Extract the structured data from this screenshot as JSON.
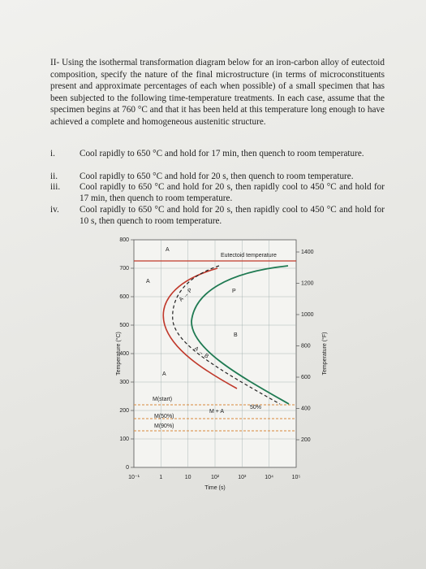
{
  "question": {
    "intro": "II- Using the isothermal transformation diagram below for an iron-carbon alloy of eutectoid composition, specify the nature of the final microstructure (in terms of microconstituents present and approximate percentages of each when possible) of a small specimen that has been subjected to the following time-temperature treatments. In each case, assume that the specimen begins at 760 °C and that it has been held at this temperature long enough to have achieved a complete and homogeneous austenitic structure.",
    "items": [
      {
        "marker": "i.",
        "text": "Cool rapidly to 650 °C and hold for 17 min, then quench to room temperature."
      },
      {
        "marker": "ii.",
        "text": "Cool rapidly to 650 °C and hold for 20 s, then quench to room temperature."
      },
      {
        "marker": "iii.",
        "text": "Cool rapidly to 650 °C and hold for 20 s, then rapidly cool to 450 °C and hold for 17 min, then quench to room temperature."
      },
      {
        "marker": "iv.",
        "text": "Cool rapidly to 650 °C and hold for 20 s, then rapidly cool to 450 °C and hold for 10 s, then quench to room temperature."
      }
    ]
  },
  "diagram": {
    "y_left_label": "Temperature (°C)",
    "y_right_label": "Temperature (°F)",
    "x_label": "Time (s)",
    "y_left_ticks": [
      "800",
      "700",
      "600",
      "500",
      "400",
      "300",
      "200",
      "100",
      "0"
    ],
    "y_right_ticks": [
      "1400",
      "1200",
      "1000",
      "800",
      "600",
      "400",
      "200"
    ],
    "x_ticks": [
      "10⁻¹",
      "1",
      "10",
      "10²",
      "10³",
      "10⁴",
      "10⁵"
    ],
    "annotations": [
      "A",
      "A",
      "A",
      "P",
      "B",
      "Eutectoid temperature",
      "M(start)",
      "M + A",
      "50%",
      "M(50%)",
      "M(90%)",
      "A → P",
      "A → B"
    ]
  }
}
